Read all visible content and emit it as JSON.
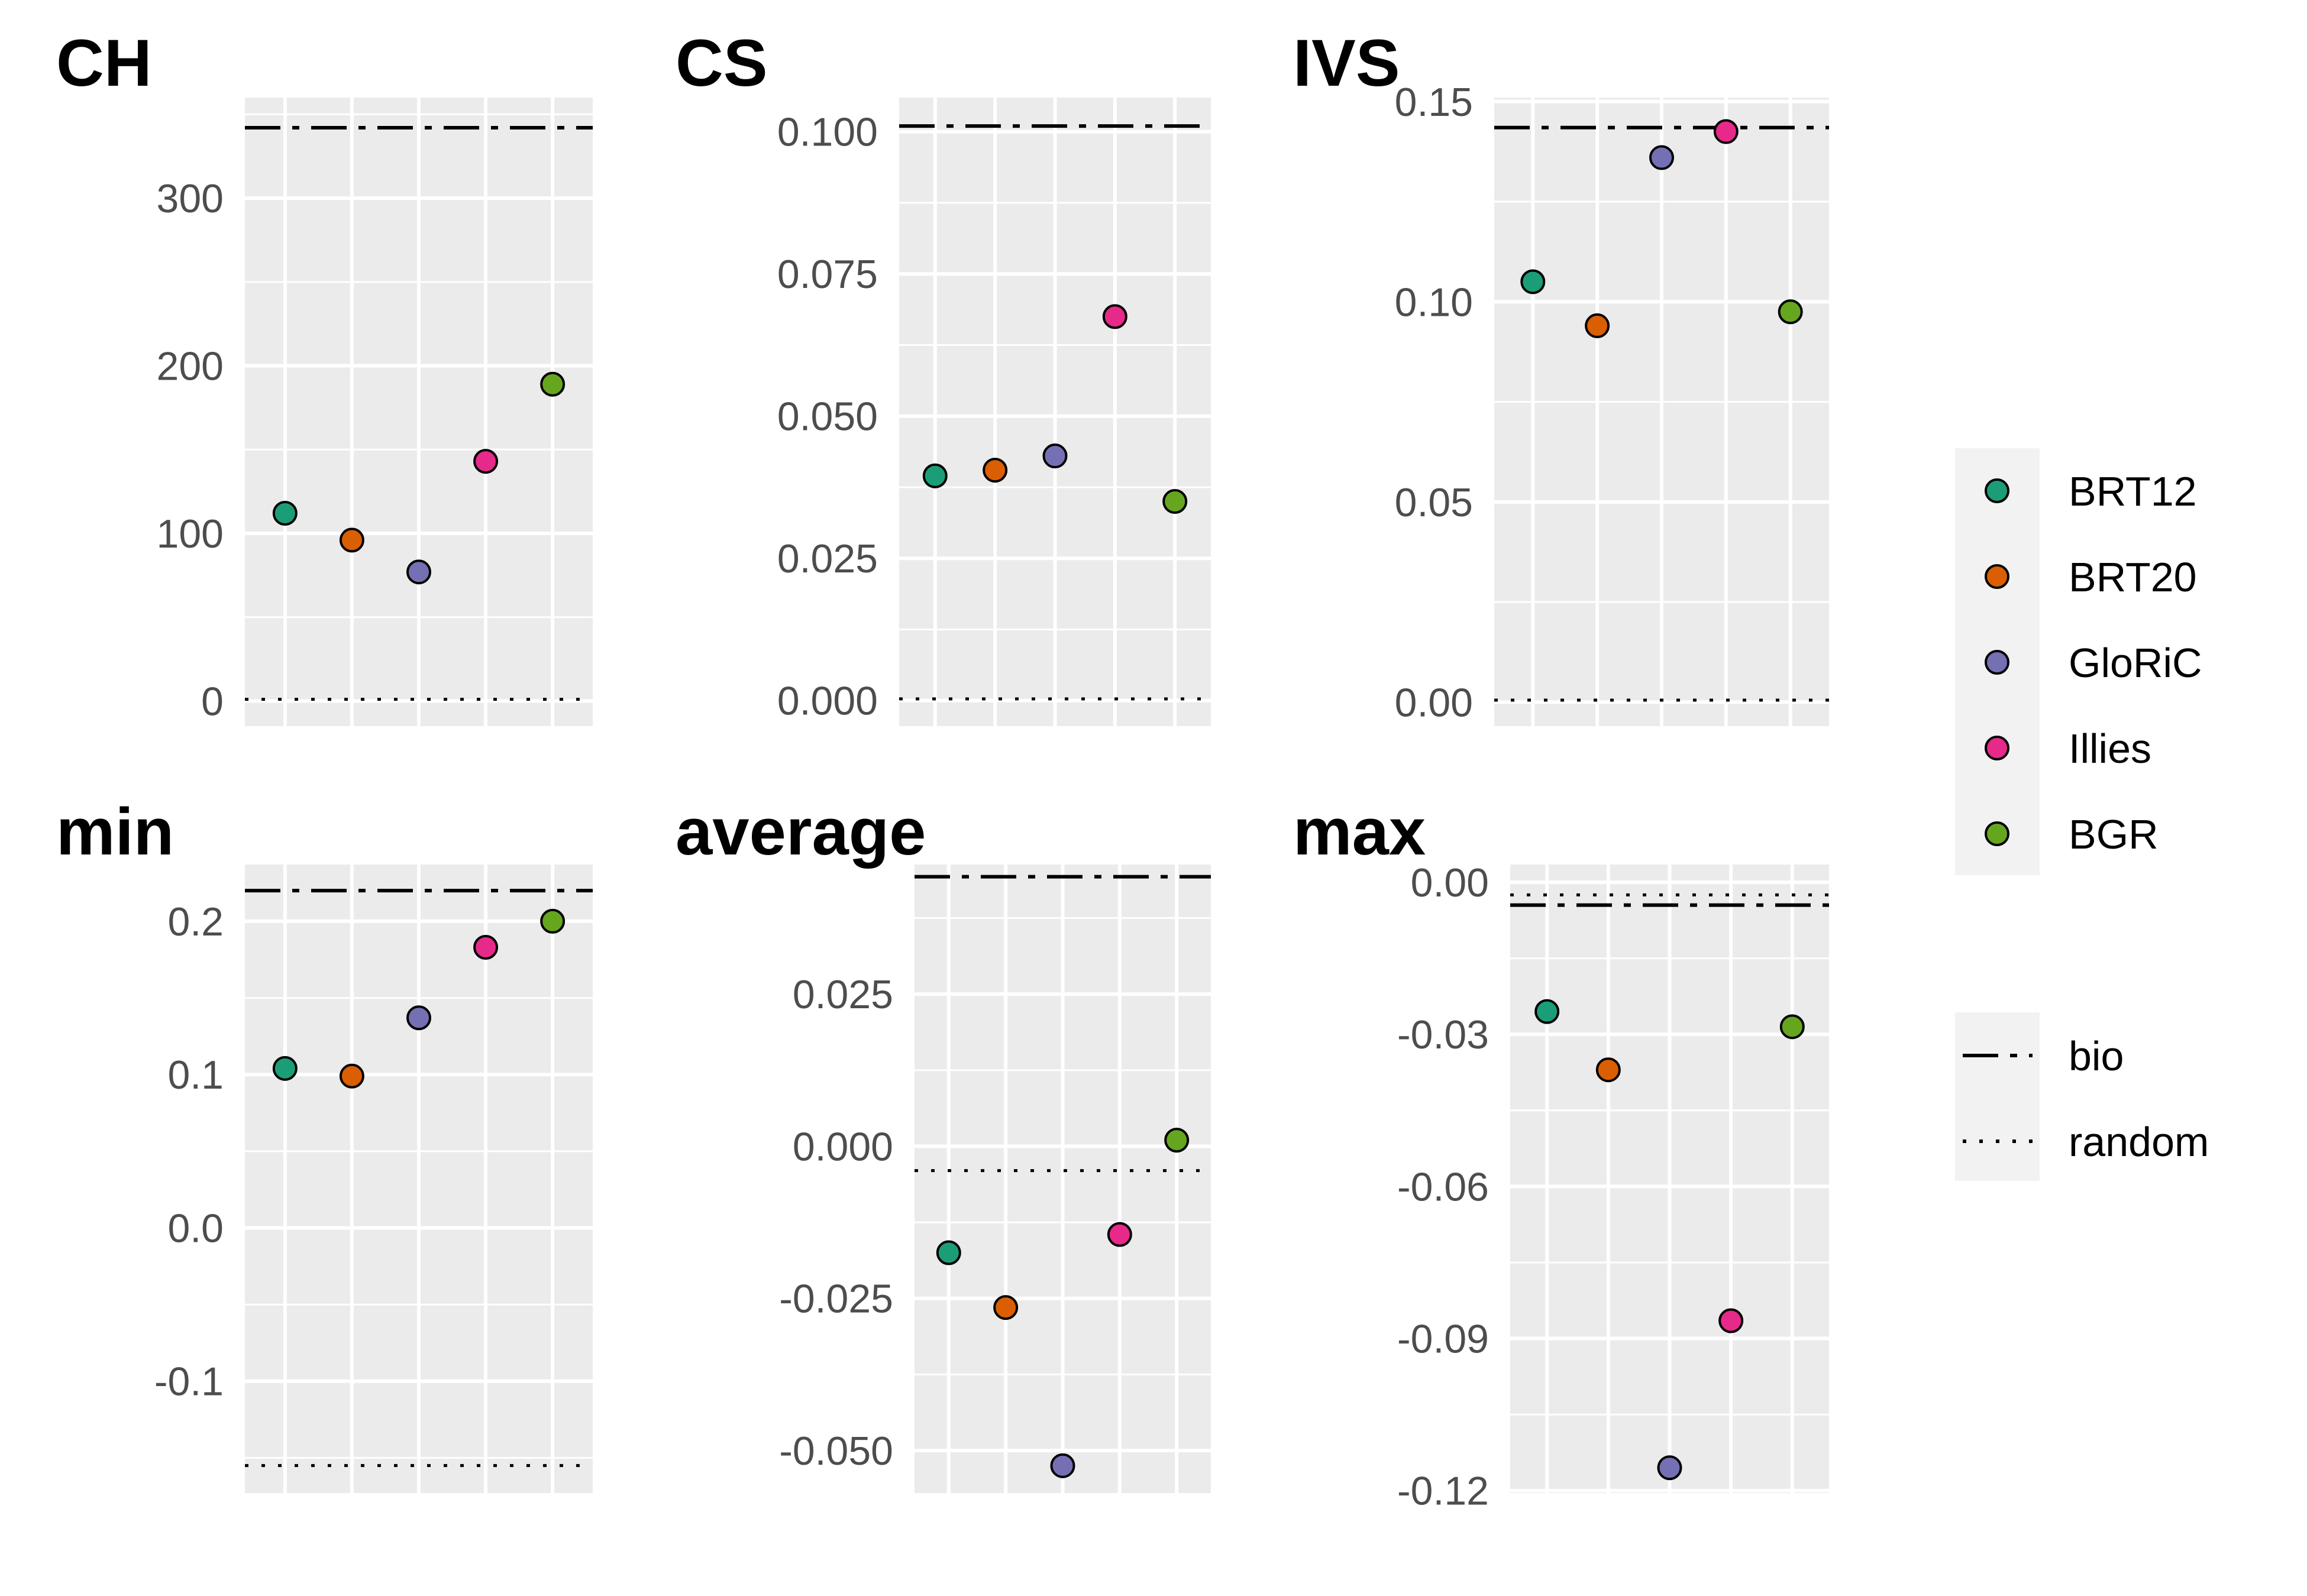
{
  "colors": {
    "panel_background": "#ebebeb",
    "grid_line": "#ffffff",
    "point_outline": "#000000",
    "series": {
      "BRT12": "#1b9e77",
      "BRT20": "#d95f02",
      "GloRiC": "#7570b3",
      "Illies": "#e7298a",
      "BGR": "#66a61e"
    }
  },
  "chart_data": [
    {
      "type": "scatter",
      "title": "CH",
      "categories": [
        "BRT12",
        "BRT20",
        "GloRiC",
        "Illies",
        "BGR"
      ],
      "values": [
        112,
        96,
        77,
        143,
        189
      ],
      "ylim": [
        -15,
        360
      ],
      "yticks": [
        0,
        100,
        200,
        300
      ],
      "ytick_labels": [
        "0",
        "100",
        "200",
        "300"
      ],
      "reference_lines": {
        "bio": 342,
        "random": 1
      },
      "grid": true
    },
    {
      "type": "scatter",
      "title": "CS",
      "categories": [
        "BRT12",
        "BRT20",
        "GloRiC",
        "Illies",
        "BGR"
      ],
      "values": [
        0.0395,
        0.0405,
        0.043,
        0.0675,
        0.035
      ],
      "ylim": [
        -0.0045,
        0.106
      ],
      "yticks": [
        0.0,
        0.025,
        0.05,
        0.075,
        0.1
      ],
      "ytick_labels": [
        "0.000",
        "0.025",
        "0.050",
        "0.075",
        "0.100"
      ],
      "reference_lines": {
        "bio": 0.101,
        "random": 0.0003
      },
      "grid": true
    },
    {
      "type": "scatter",
      "title": "IVS",
      "categories": [
        "BRT12",
        "BRT20",
        "GloRiC",
        "Illies",
        "BGR"
      ],
      "values": [
        0.105,
        0.094,
        0.136,
        0.1425,
        0.0975
      ],
      "ylim": [
        -0.006,
        0.151
      ],
      "yticks": [
        0.0,
        0.05,
        0.1,
        0.15
      ],
      "ytick_labels": [
        "0.00",
        "0.05",
        "0.10",
        "0.15"
      ],
      "reference_lines": {
        "bio": 0.1435,
        "random": 0.0005
      },
      "grid": true
    },
    {
      "type": "scatter",
      "title": "min",
      "categories": [
        "BRT12",
        "BRT20",
        "GloRiC",
        "Illies",
        "BGR"
      ],
      "values": [
        0.104,
        0.099,
        0.137,
        0.183,
        0.2
      ],
      "ylim": [
        -0.173,
        0.237
      ],
      "yticks": [
        -0.1,
        0.0,
        0.1,
        0.2
      ],
      "ytick_labels": [
        "-0.1",
        "0.0",
        "0.1",
        "0.2"
      ],
      "reference_lines": {
        "bio": 0.22,
        "random": -0.155
      },
      "grid": true
    },
    {
      "type": "scatter",
      "title": "average",
      "categories": [
        "BRT12",
        "BRT20",
        "GloRiC",
        "Illies",
        "BGR"
      ],
      "values": [
        -0.0175,
        -0.0265,
        -0.0525,
        -0.0145,
        0.001
      ],
      "ylim": [
        -0.057,
        0.0463
      ],
      "yticks": [
        -0.05,
        -0.025,
        0.0,
        0.025
      ],
      "ytick_labels": [
        "-0.050",
        "-0.025",
        "0.000",
        "0.025"
      ],
      "reference_lines": {
        "bio": 0.0443,
        "random": -0.004
      },
      "grid": true
    },
    {
      "type": "scatter",
      "title": "max",
      "categories": [
        "BRT12",
        "BRT20",
        "GloRiC",
        "Illies",
        "BGR"
      ],
      "values": [
        -0.0255,
        -0.037,
        -0.1155,
        -0.0865,
        -0.0285
      ],
      "ylim": [
        -0.1205,
        0.0035
      ],
      "yticks": [
        -0.12,
        -0.09,
        -0.06,
        -0.03,
        0.0
      ],
      "ytick_labels": [
        "-0.12",
        "-0.09",
        "-0.06",
        "-0.03",
        "0.00"
      ],
      "reference_lines": {
        "bio": -0.0045,
        "random": -0.0025
      },
      "grid": true
    }
  ],
  "legend": {
    "placement": "right",
    "series": [
      {
        "label": "BRT12",
        "key": "BRT12"
      },
      {
        "label": "BRT20",
        "key": "BRT20"
      },
      {
        "label": "GloRiC",
        "key": "GloRiC"
      },
      {
        "label": "Illies",
        "key": "Illies"
      },
      {
        "label": "BGR",
        "key": "BGR"
      }
    ],
    "lines": [
      {
        "label": "bio",
        "style": "dashdot"
      },
      {
        "label": "random",
        "style": "dotted"
      }
    ]
  }
}
